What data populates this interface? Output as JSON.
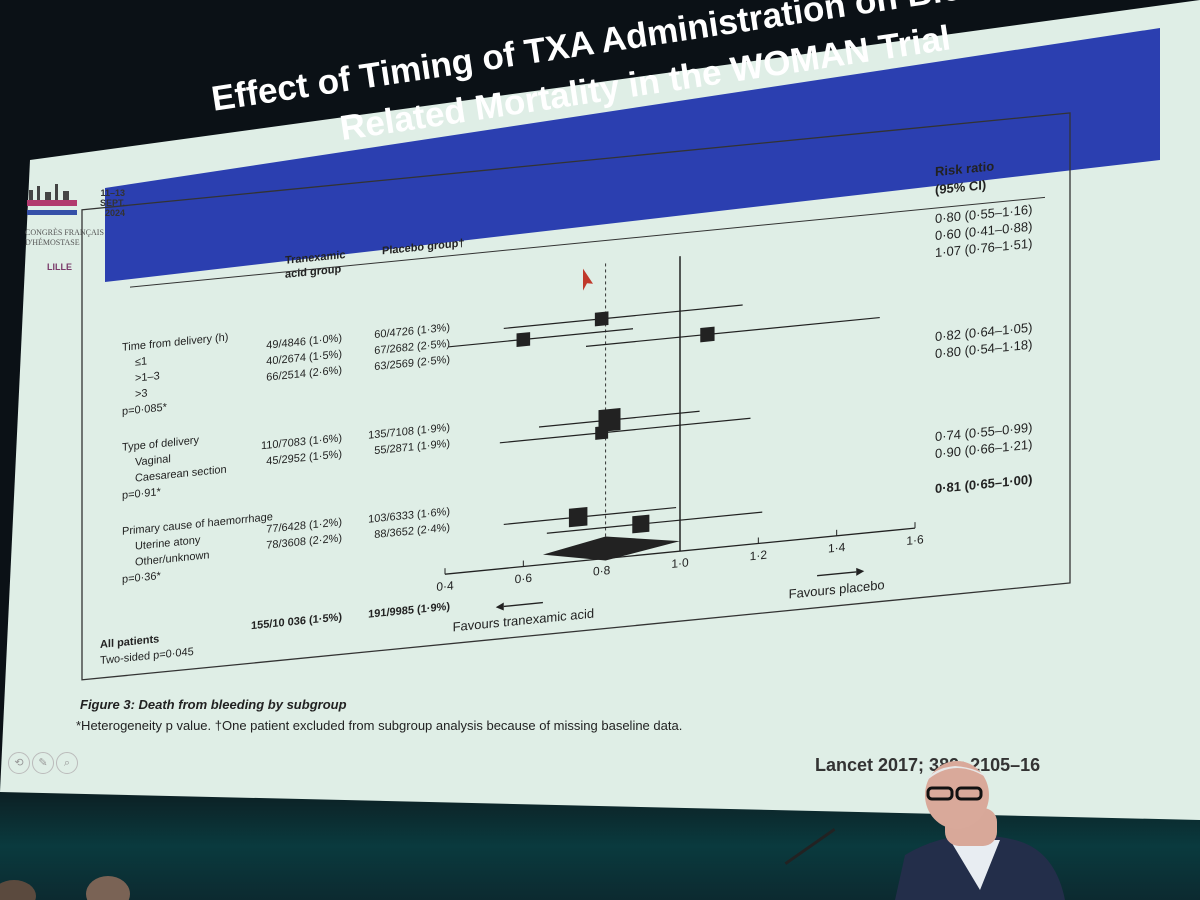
{
  "slide": {
    "title": "Effect of Timing of TXA Administration on Bleeding-Related Mortality in the WOMAN Trial",
    "reference": "Lancet 2017; 389: 2105–16",
    "logo": {
      "dates": "11–13 SEPT. 2024",
      "name": "CONGRÈS FRANÇAIS D'HÉMOSTASE",
      "city": "LILLE"
    }
  },
  "figure": {
    "caption": "Figure 3: Death from bleeding by subgroup",
    "footnote": "*Heterogeneity p value. †One patient excluded from subgroup analysis because of missing baseline data.",
    "col_txa": "Tranexamic acid group",
    "col_placebo": "Placebo group†",
    "col_rr": "Risk ratio (95% CI)",
    "favours_left": "Favours tranexamic acid",
    "favours_right": "Favours placebo"
  },
  "chart_data": {
    "type": "forest",
    "x_ticks": [
      "0·4",
      "0·6",
      "0·8",
      "1·0",
      "1·2",
      "1·4",
      "1·6"
    ],
    "xlim": [
      0.4,
      1.6
    ],
    "reference_line": 1.0,
    "overall_line": 0.81,
    "groups": [
      {
        "name": "Time from delivery (h)",
        "p": "p=0·085*",
        "rows": [
          {
            "label": "≤1",
            "txa": "49/4846 (1·0%)",
            "placebo": "60/4726 (1·3%)",
            "rr": 0.8,
            "lo": 0.55,
            "hi": 1.16,
            "rr_text": "0·80 (0·55–1·16)",
            "weight": 0.4
          },
          {
            "label": ">1–3",
            "txa": "40/2674 (1·5%)",
            "placebo": "67/2682 (2·5%)",
            "rr": 0.6,
            "lo": 0.41,
            "hi": 0.88,
            "rr_text": "0·60 (0·41–0·88)",
            "weight": 0.4
          },
          {
            "label": ">3",
            "txa": "66/2514 (2·6%)",
            "placebo": "63/2569 (2·5%)",
            "rr": 1.07,
            "lo": 0.76,
            "hi": 1.51,
            "rr_text": "1·07 (0·76–1·51)",
            "weight": 0.45
          }
        ]
      },
      {
        "name": "Type of delivery",
        "p": "p=0·91*",
        "rows": [
          {
            "label": "Vaginal",
            "txa": "110/7083 (1·6%)",
            "placebo": "135/7108 (1·9%)",
            "rr": 0.82,
            "lo": 0.64,
            "hi": 1.05,
            "rr_text": "0·82 (0·64–1·05)",
            "weight": 1.0
          },
          {
            "label": "Caesarean section",
            "txa": "45/2952 (1·5%)",
            "placebo": "55/2871 (1·9%)",
            "rr": 0.8,
            "lo": 0.54,
            "hi": 1.18,
            "rr_text": "0·80 (0·54–1·18)",
            "weight": 0.35
          }
        ]
      },
      {
        "name": "Primary cause of haemorrhage",
        "p": "p=0·36*",
        "rows": [
          {
            "label": "Uterine atony",
            "txa": "77/6428 (1·2%)",
            "placebo": "103/6333 (1·6%)",
            "rr": 0.74,
            "lo": 0.55,
            "hi": 0.99,
            "rr_text": "0·74 (0·55–0·99)",
            "weight": 0.75
          },
          {
            "label": "Other/unknown",
            "txa": "78/3608 (2·2%)",
            "placebo": "88/3652 (2·4%)",
            "rr": 0.9,
            "lo": 0.66,
            "hi": 1.21,
            "rr_text": "0·90 (0·66–1·21)",
            "weight": 0.65
          }
        ]
      }
    ],
    "overall": {
      "label": "All patients",
      "p": "Two-sided p=0·045",
      "txa": "155/10 036 (1·5%)",
      "placebo": "191/9985 (1·9%)",
      "rr": 0.81,
      "lo": 0.65,
      "hi": 1.0,
      "rr_text": "0·81 (0·65–1·00)"
    }
  }
}
